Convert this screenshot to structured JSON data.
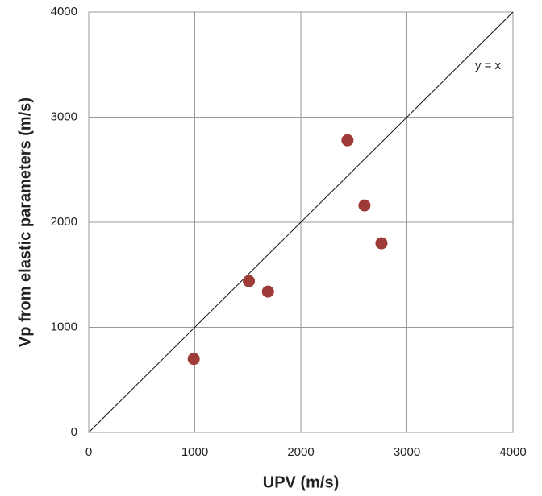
{
  "chart_data": {
    "type": "scatter",
    "x_label": "UPV (m/s)",
    "y_label": "Vp from elastic parameters (m/s)",
    "annotation": "y = x",
    "series": [
      {
        "color": "#9e3b37",
        "x": [
          990,
          1510,
          1690,
          2440,
          2600,
          2760
        ],
        "values": [
          700,
          1440,
          1340,
          2780,
          2160,
          1800
        ]
      }
    ],
    "xlim": [
      0,
      4000
    ],
    "ylim": [
      0,
      4000
    ],
    "xticks": [
      0,
      1000,
      2000,
      3000,
      4000
    ],
    "yticks": [
      0,
      1000,
      2000,
      3000,
      4000
    ],
    "grid": true,
    "identity_line": true
  }
}
